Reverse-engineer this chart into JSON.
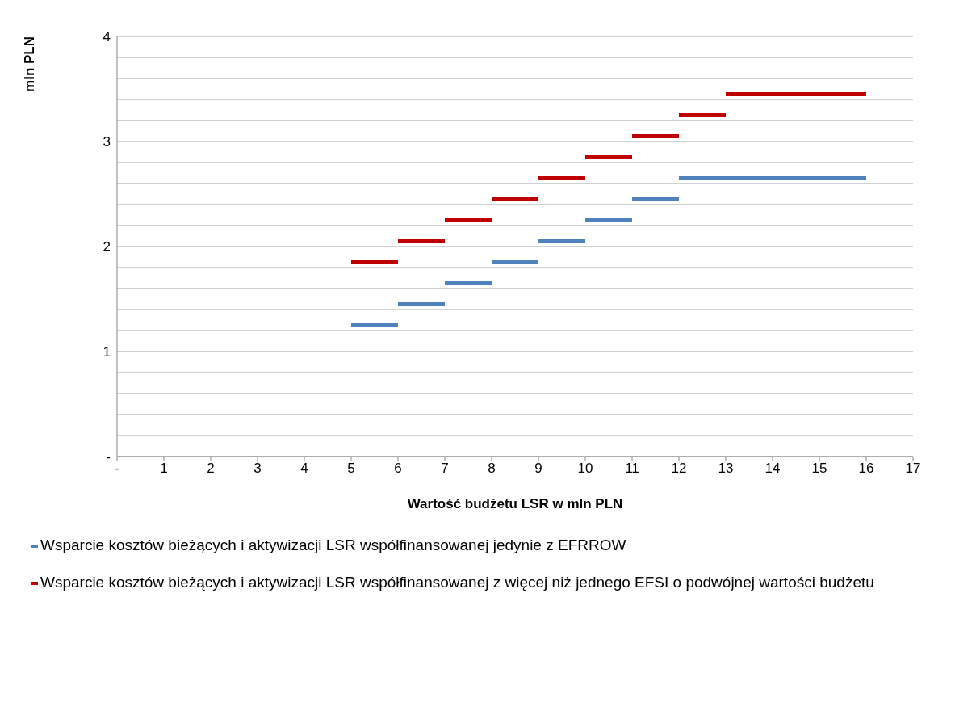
{
  "chart_data": {
    "type": "line",
    "xlabel": "Wartość budżetu LSR w mln PLN",
    "ylabel": "mln PLN",
    "xlim": [
      0,
      17
    ],
    "xticks": [
      {
        "value": 0,
        "label": "-"
      },
      1,
      2,
      3,
      4,
      5,
      6,
      7,
      8,
      9,
      10,
      11,
      12,
      13,
      14,
      15,
      16,
      17
    ],
    "ylim": [
      0,
      4
    ],
    "yticks": [
      {
        "value": 0,
        "label": "-"
      },
      {
        "value": 0.2,
        "label": null
      },
      {
        "value": 0.4,
        "label": null
      },
      {
        "value": 0.6,
        "label": null
      },
      {
        "value": 0.8,
        "label": null
      },
      1,
      {
        "value": 1.2,
        "label": null
      },
      {
        "value": 1.4,
        "label": null
      },
      {
        "value": 1.6,
        "label": null
      },
      {
        "value": 1.8,
        "label": null
      },
      2,
      {
        "value": 2.2,
        "label": null
      },
      {
        "value": 2.4,
        "label": null
      },
      {
        "value": 2.6,
        "label": null
      },
      {
        "value": 2.8,
        "label": null
      },
      3,
      {
        "value": 3.2,
        "label": null
      },
      {
        "value": 3.4,
        "label": null
      },
      {
        "value": 3.6,
        "label": null
      },
      {
        "value": 3.8,
        "label": null
      },
      4
    ],
    "grid": "y",
    "legend": "bottom",
    "marker": "none",
    "line_style": "solid",
    "series": [
      {
        "name": "Wsparcie kosztów bieżących i aktywizacji LSR współfinansowanej jedynie z EFRROW",
        "color": "#4f81bd",
        "x": [
          5,
          6,
          6,
          7,
          7,
          8,
          8,
          9,
          9,
          10,
          10,
          11,
          11,
          12,
          12,
          16
        ],
        "values": [
          1.25,
          1.25,
          1.45,
          1.45,
          1.65,
          1.65,
          1.85,
          1.85,
          2.05,
          2.05,
          2.25,
          2.25,
          2.45,
          2.45,
          2.65,
          2.65
        ]
      },
      {
        "name": "Wsparcie kosztów bieżących i aktywizacji LSR współfinansowanej z więcej niż jednego EFSI o podwójnej wartości budżetu",
        "color": "#c00000",
        "x": [
          5,
          6,
          6,
          7,
          7,
          8,
          8,
          9,
          9,
          10,
          10,
          11,
          11,
          12,
          12,
          13,
          13,
          16
        ],
        "values": [
          1.85,
          1.85,
          2.05,
          2.05,
          2.25,
          2.25,
          2.45,
          2.45,
          2.65,
          2.65,
          2.85,
          2.85,
          3.05,
          3.05,
          3.25,
          3.25,
          3.45,
          3.45
        ]
      }
    ]
  }
}
